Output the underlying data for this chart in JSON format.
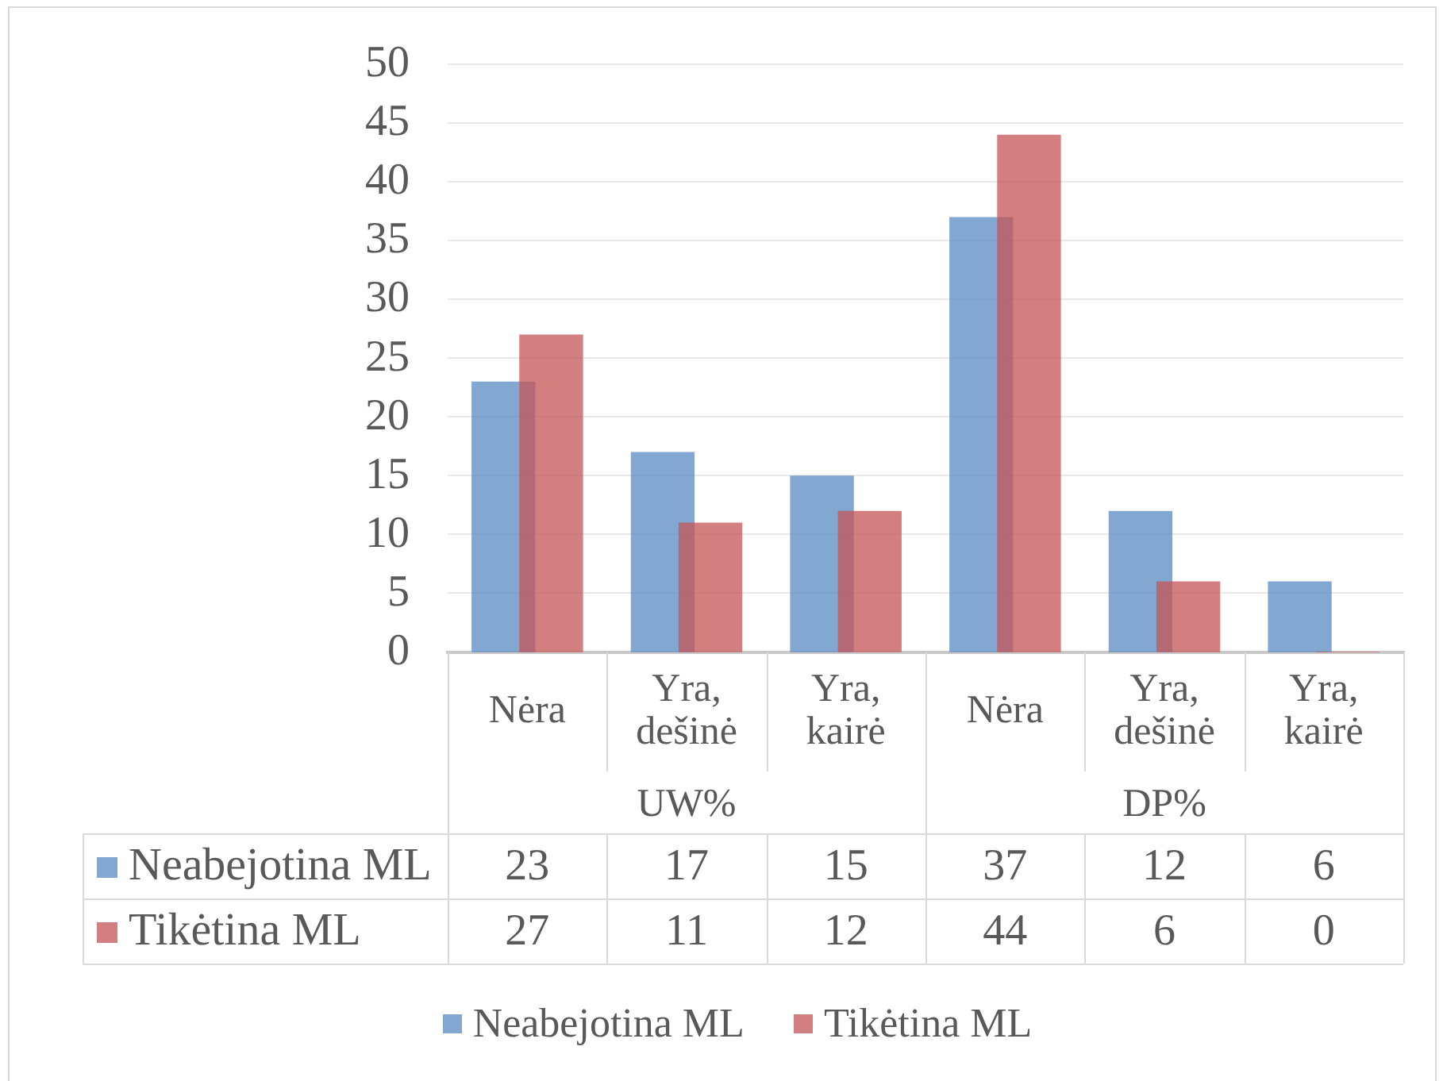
{
  "chart_data": {
    "type": "bar",
    "categories": [
      "Nėra",
      "Yra, dešinė",
      "Yra, kairė",
      "Nėra",
      "Yra, dešinė",
      "Yra, kairė"
    ],
    "series": [
      {
        "name": "Neabejotina ML",
        "color": "#82a7d1",
        "values": [
          23,
          17,
          15,
          37,
          12,
          6
        ]
      },
      {
        "name": "Tikėtina ML",
        "color": "#d47f7f",
        "values": [
          27,
          11,
          12,
          44,
          6,
          0
        ]
      }
    ],
    "ylim": [
      0,
      50
    ],
    "yticks": [
      0,
      5,
      10,
      15,
      20,
      25,
      30,
      35,
      40,
      45,
      50
    ],
    "grid": "y",
    "legend": "bottom",
    "data_labels": true,
    "annotations": [
      "UW%",
      "DP%"
    ]
  }
}
